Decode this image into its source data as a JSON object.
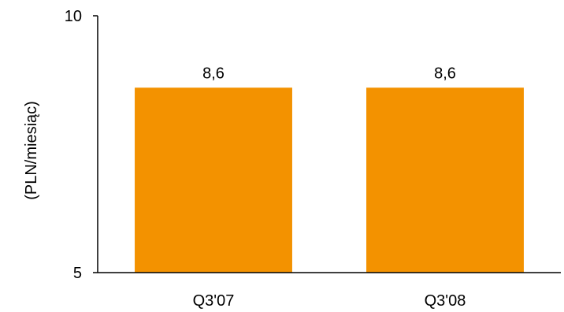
{
  "chart_data": {
    "type": "bar",
    "categories": [
      "Q3'07",
      "Q3'08"
    ],
    "values": [
      8.6,
      8.6
    ],
    "value_labels": [
      "8,6",
      "8,6"
    ],
    "ylabel": "(PLN/miesiąc)",
    "xlabel": "",
    "ylim": [
      5,
      10
    ],
    "yticks": [
      5,
      10
    ],
    "ytick_labels": [
      "5",
      "10"
    ],
    "bar_color": "#F39200",
    "grid": false,
    "legend": "none"
  }
}
